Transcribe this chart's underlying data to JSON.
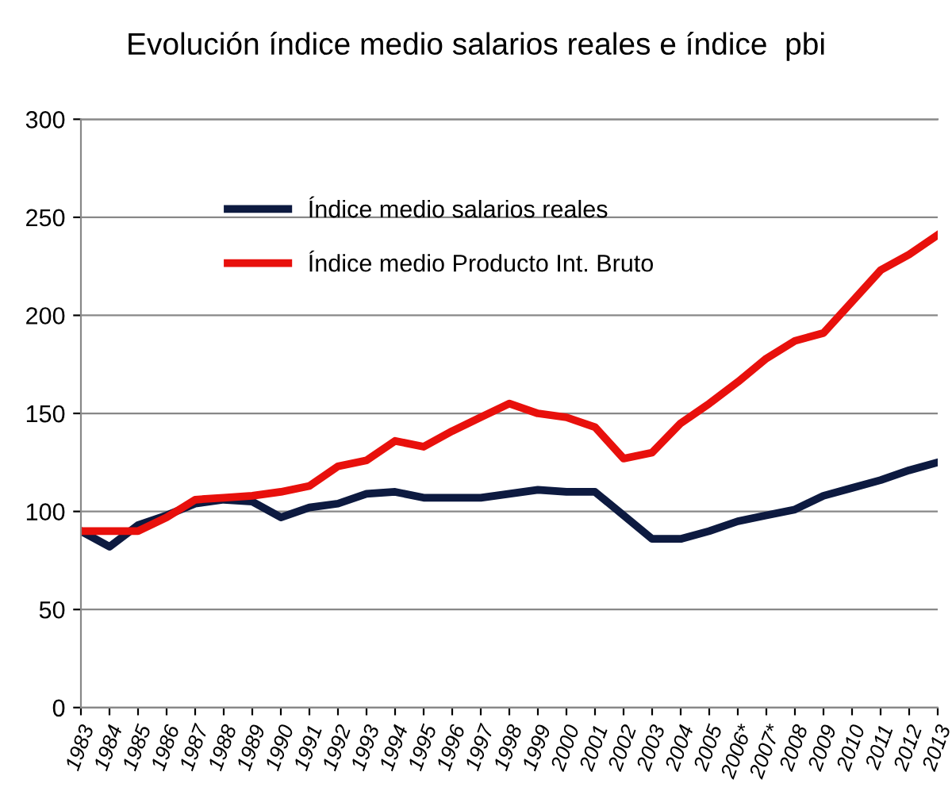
{
  "chart_data": {
    "type": "line",
    "title": "Evolución índice medio salarios reales e índice  pbi",
    "categories": [
      "1983",
      "1984",
      "1985",
      "1986",
      "1987",
      "1988",
      "1989",
      "1990",
      "1991",
      "1992",
      "1993",
      "1994",
      "1995",
      "1996",
      "1997",
      "1998",
      "1999",
      "2000",
      "2001",
      "2002",
      "2003",
      "2004",
      "2005",
      "2006*",
      "2007*",
      "2008",
      "2009",
      "2010",
      "2011",
      "2012",
      "2013"
    ],
    "series": [
      {
        "name": "Índice medio salarios reales",
        "color": "#0d1a40",
        "values": [
          90,
          82,
          93,
          98,
          104,
          106,
          105,
          97,
          102,
          104,
          109,
          110,
          107,
          107,
          107,
          109,
          111,
          110,
          110,
          98,
          86,
          86,
          90,
          95,
          98,
          101,
          108,
          112,
          116,
          121,
          125
        ]
      },
      {
        "name": "Índice medio Producto Int. Bruto",
        "color": "#e8100c",
        "values": [
          90,
          90,
          90,
          97,
          106,
          107,
          108,
          110,
          113,
          123,
          126,
          136,
          133,
          141,
          148,
          155,
          150,
          148,
          143,
          127,
          130,
          145,
          155,
          166,
          178,
          187,
          191,
          207,
          223,
          231,
          241
        ]
      }
    ],
    "ylim": [
      0,
      300
    ],
    "yticks": [
      0,
      50,
      100,
      150,
      200,
      250,
      300
    ],
    "grid": "y",
    "legend": "top",
    "marker": "none",
    "line_style": "solid"
  }
}
